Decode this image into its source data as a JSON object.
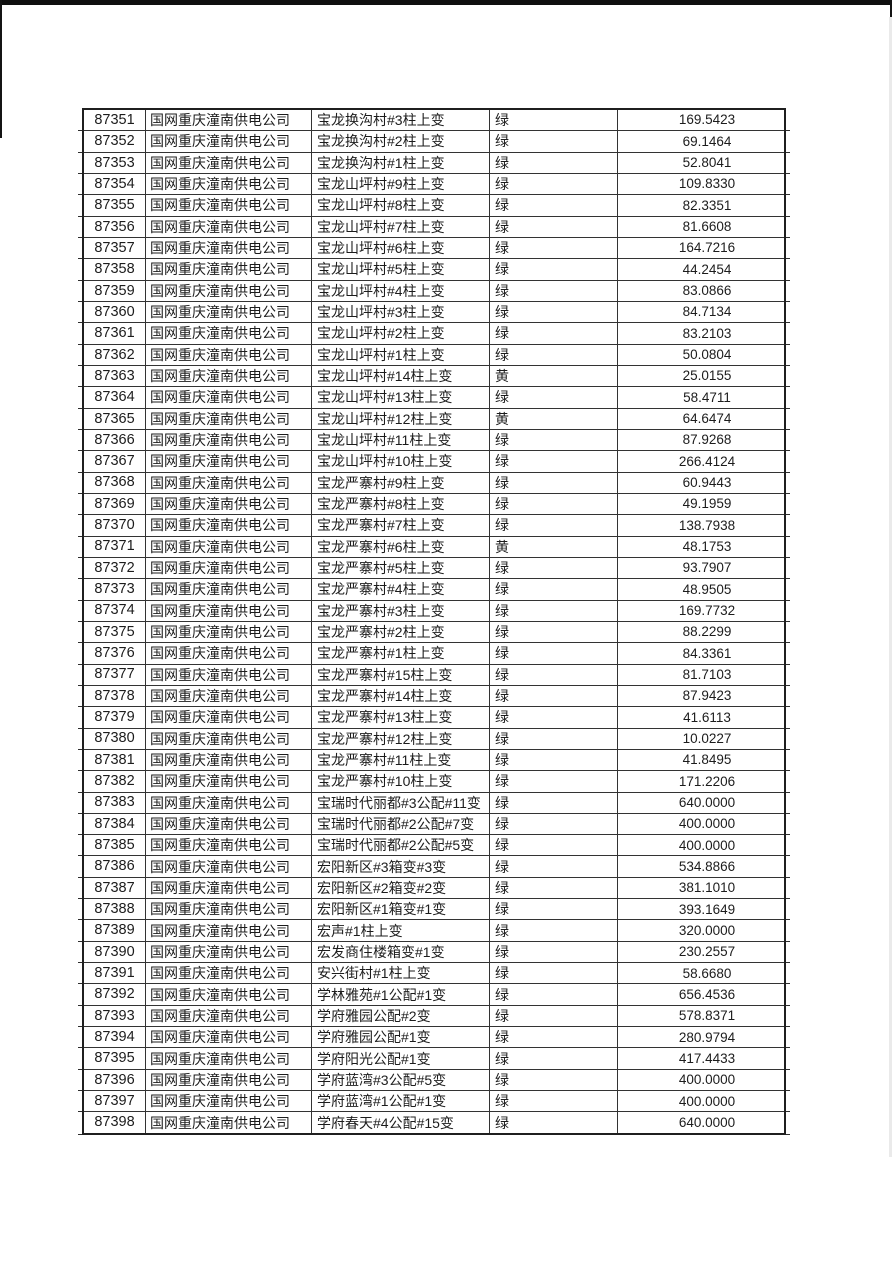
{
  "table": {
    "rows": [
      [
        "87351",
        "国网重庆潼南供电公司",
        "宝龙换沟村#3柱上变",
        "绿",
        "169.5423"
      ],
      [
        "87352",
        "国网重庆潼南供电公司",
        "宝龙换沟村#2柱上变",
        "绿",
        "69.1464"
      ],
      [
        "87353",
        "国网重庆潼南供电公司",
        "宝龙换沟村#1柱上变",
        "绿",
        "52.8041"
      ],
      [
        "87354",
        "国网重庆潼南供电公司",
        "宝龙山坪村#9柱上变",
        "绿",
        "109.8330"
      ],
      [
        "87355",
        "国网重庆潼南供电公司",
        "宝龙山坪村#8柱上变",
        "绿",
        "82.3351"
      ],
      [
        "87356",
        "国网重庆潼南供电公司",
        "宝龙山坪村#7柱上变",
        "绿",
        "81.6608"
      ],
      [
        "87357",
        "国网重庆潼南供电公司",
        "宝龙山坪村#6柱上变",
        "绿",
        "164.7216"
      ],
      [
        "87358",
        "国网重庆潼南供电公司",
        "宝龙山坪村#5柱上变",
        "绿",
        "44.2454"
      ],
      [
        "87359",
        "国网重庆潼南供电公司",
        "宝龙山坪村#4柱上变",
        "绿",
        "83.0866"
      ],
      [
        "87360",
        "国网重庆潼南供电公司",
        "宝龙山坪村#3柱上变",
        "绿",
        "84.7134"
      ],
      [
        "87361",
        "国网重庆潼南供电公司",
        "宝龙山坪村#2柱上变",
        "绿",
        "83.2103"
      ],
      [
        "87362",
        "国网重庆潼南供电公司",
        "宝龙山坪村#1柱上变",
        "绿",
        "50.0804"
      ],
      [
        "87363",
        "国网重庆潼南供电公司",
        "宝龙山坪村#14柱上变",
        "黄",
        "25.0155"
      ],
      [
        "87364",
        "国网重庆潼南供电公司",
        "宝龙山坪村#13柱上变",
        "绿",
        "58.4711"
      ],
      [
        "87365",
        "国网重庆潼南供电公司",
        "宝龙山坪村#12柱上变",
        "黄",
        "64.6474"
      ],
      [
        "87366",
        "国网重庆潼南供电公司",
        "宝龙山坪村#11柱上变",
        "绿",
        "87.9268"
      ],
      [
        "87367",
        "国网重庆潼南供电公司",
        "宝龙山坪村#10柱上变",
        "绿",
        "266.4124"
      ],
      [
        "87368",
        "国网重庆潼南供电公司",
        "宝龙严寨村#9柱上变",
        "绿",
        "60.9443"
      ],
      [
        "87369",
        "国网重庆潼南供电公司",
        "宝龙严寨村#8柱上变",
        "绿",
        "49.1959"
      ],
      [
        "87370",
        "国网重庆潼南供电公司",
        "宝龙严寨村#7柱上变",
        "绿",
        "138.7938"
      ],
      [
        "87371",
        "国网重庆潼南供电公司",
        "宝龙严寨村#6柱上变",
        "黄",
        "48.1753"
      ],
      [
        "87372",
        "国网重庆潼南供电公司",
        "宝龙严寨村#5柱上变",
        "绿",
        "93.7907"
      ],
      [
        "87373",
        "国网重庆潼南供电公司",
        "宝龙严寨村#4柱上变",
        "绿",
        "48.9505"
      ],
      [
        "87374",
        "国网重庆潼南供电公司",
        "宝龙严寨村#3柱上变",
        "绿",
        "169.7732"
      ],
      [
        "87375",
        "国网重庆潼南供电公司",
        "宝龙严寨村#2柱上变",
        "绿",
        "88.2299"
      ],
      [
        "87376",
        "国网重庆潼南供电公司",
        "宝龙严寨村#1柱上变",
        "绿",
        "84.3361"
      ],
      [
        "87377",
        "国网重庆潼南供电公司",
        "宝龙严寨村#15柱上变",
        "绿",
        "81.7103"
      ],
      [
        "87378",
        "国网重庆潼南供电公司",
        "宝龙严寨村#14柱上变",
        "绿",
        "87.9423"
      ],
      [
        "87379",
        "国网重庆潼南供电公司",
        "宝龙严寨村#13柱上变",
        "绿",
        "41.6113"
      ],
      [
        "87380",
        "国网重庆潼南供电公司",
        "宝龙严寨村#12柱上变",
        "绿",
        "10.0227"
      ],
      [
        "87381",
        "国网重庆潼南供电公司",
        "宝龙严寨村#11柱上变",
        "绿",
        "41.8495"
      ],
      [
        "87382",
        "国网重庆潼南供电公司",
        "宝龙严寨村#10柱上变",
        "绿",
        "171.2206"
      ],
      [
        "87383",
        "国网重庆潼南供电公司",
        "宝瑞时代丽都#3公配#11变",
        "绿",
        "640.0000"
      ],
      [
        "87384",
        "国网重庆潼南供电公司",
        "宝瑞时代丽都#2公配#7变",
        "绿",
        "400.0000"
      ],
      [
        "87385",
        "国网重庆潼南供电公司",
        "宝瑞时代丽都#2公配#5变",
        "绿",
        "400.0000"
      ],
      [
        "87386",
        "国网重庆潼南供电公司",
        "宏阳新区#3箱变#3变",
        "绿",
        "534.8866"
      ],
      [
        "87387",
        "国网重庆潼南供电公司",
        "宏阳新区#2箱变#2变",
        "绿",
        "381.1010"
      ],
      [
        "87388",
        "国网重庆潼南供电公司",
        "宏阳新区#1箱变#1变",
        "绿",
        "393.1649"
      ],
      [
        "87389",
        "国网重庆潼南供电公司",
        "宏声#1柱上变",
        "绿",
        "320.0000"
      ],
      [
        "87390",
        "国网重庆潼南供电公司",
        "宏发商住楼箱变#1变",
        "绿",
        "230.2557"
      ],
      [
        "87391",
        "国网重庆潼南供电公司",
        "安兴街村#1柱上变",
        "绿",
        "58.6680"
      ],
      [
        "87392",
        "国网重庆潼南供电公司",
        "学林雅苑#1公配#1变",
        "绿",
        "656.4536"
      ],
      [
        "87393",
        "国网重庆潼南供电公司",
        "学府雅园公配#2变",
        "绿",
        "578.8371"
      ],
      [
        "87394",
        "国网重庆潼南供电公司",
        "学府雅园公配#1变",
        "绿",
        "280.9794"
      ],
      [
        "87395",
        "国网重庆潼南供电公司",
        "学府阳光公配#1变",
        "绿",
        "417.4433"
      ],
      [
        "87396",
        "国网重庆潼南供电公司",
        "学府蓝湾#3公配#5变",
        "绿",
        "400.0000"
      ],
      [
        "87397",
        "国网重庆潼南供电公司",
        "学府蓝湾#1公配#1变",
        "绿",
        "400.0000"
      ],
      [
        "87398",
        "国网重庆潼南供电公司",
        "学府春天#4公配#15变",
        "绿",
        "640.0000"
      ]
    ]
  }
}
